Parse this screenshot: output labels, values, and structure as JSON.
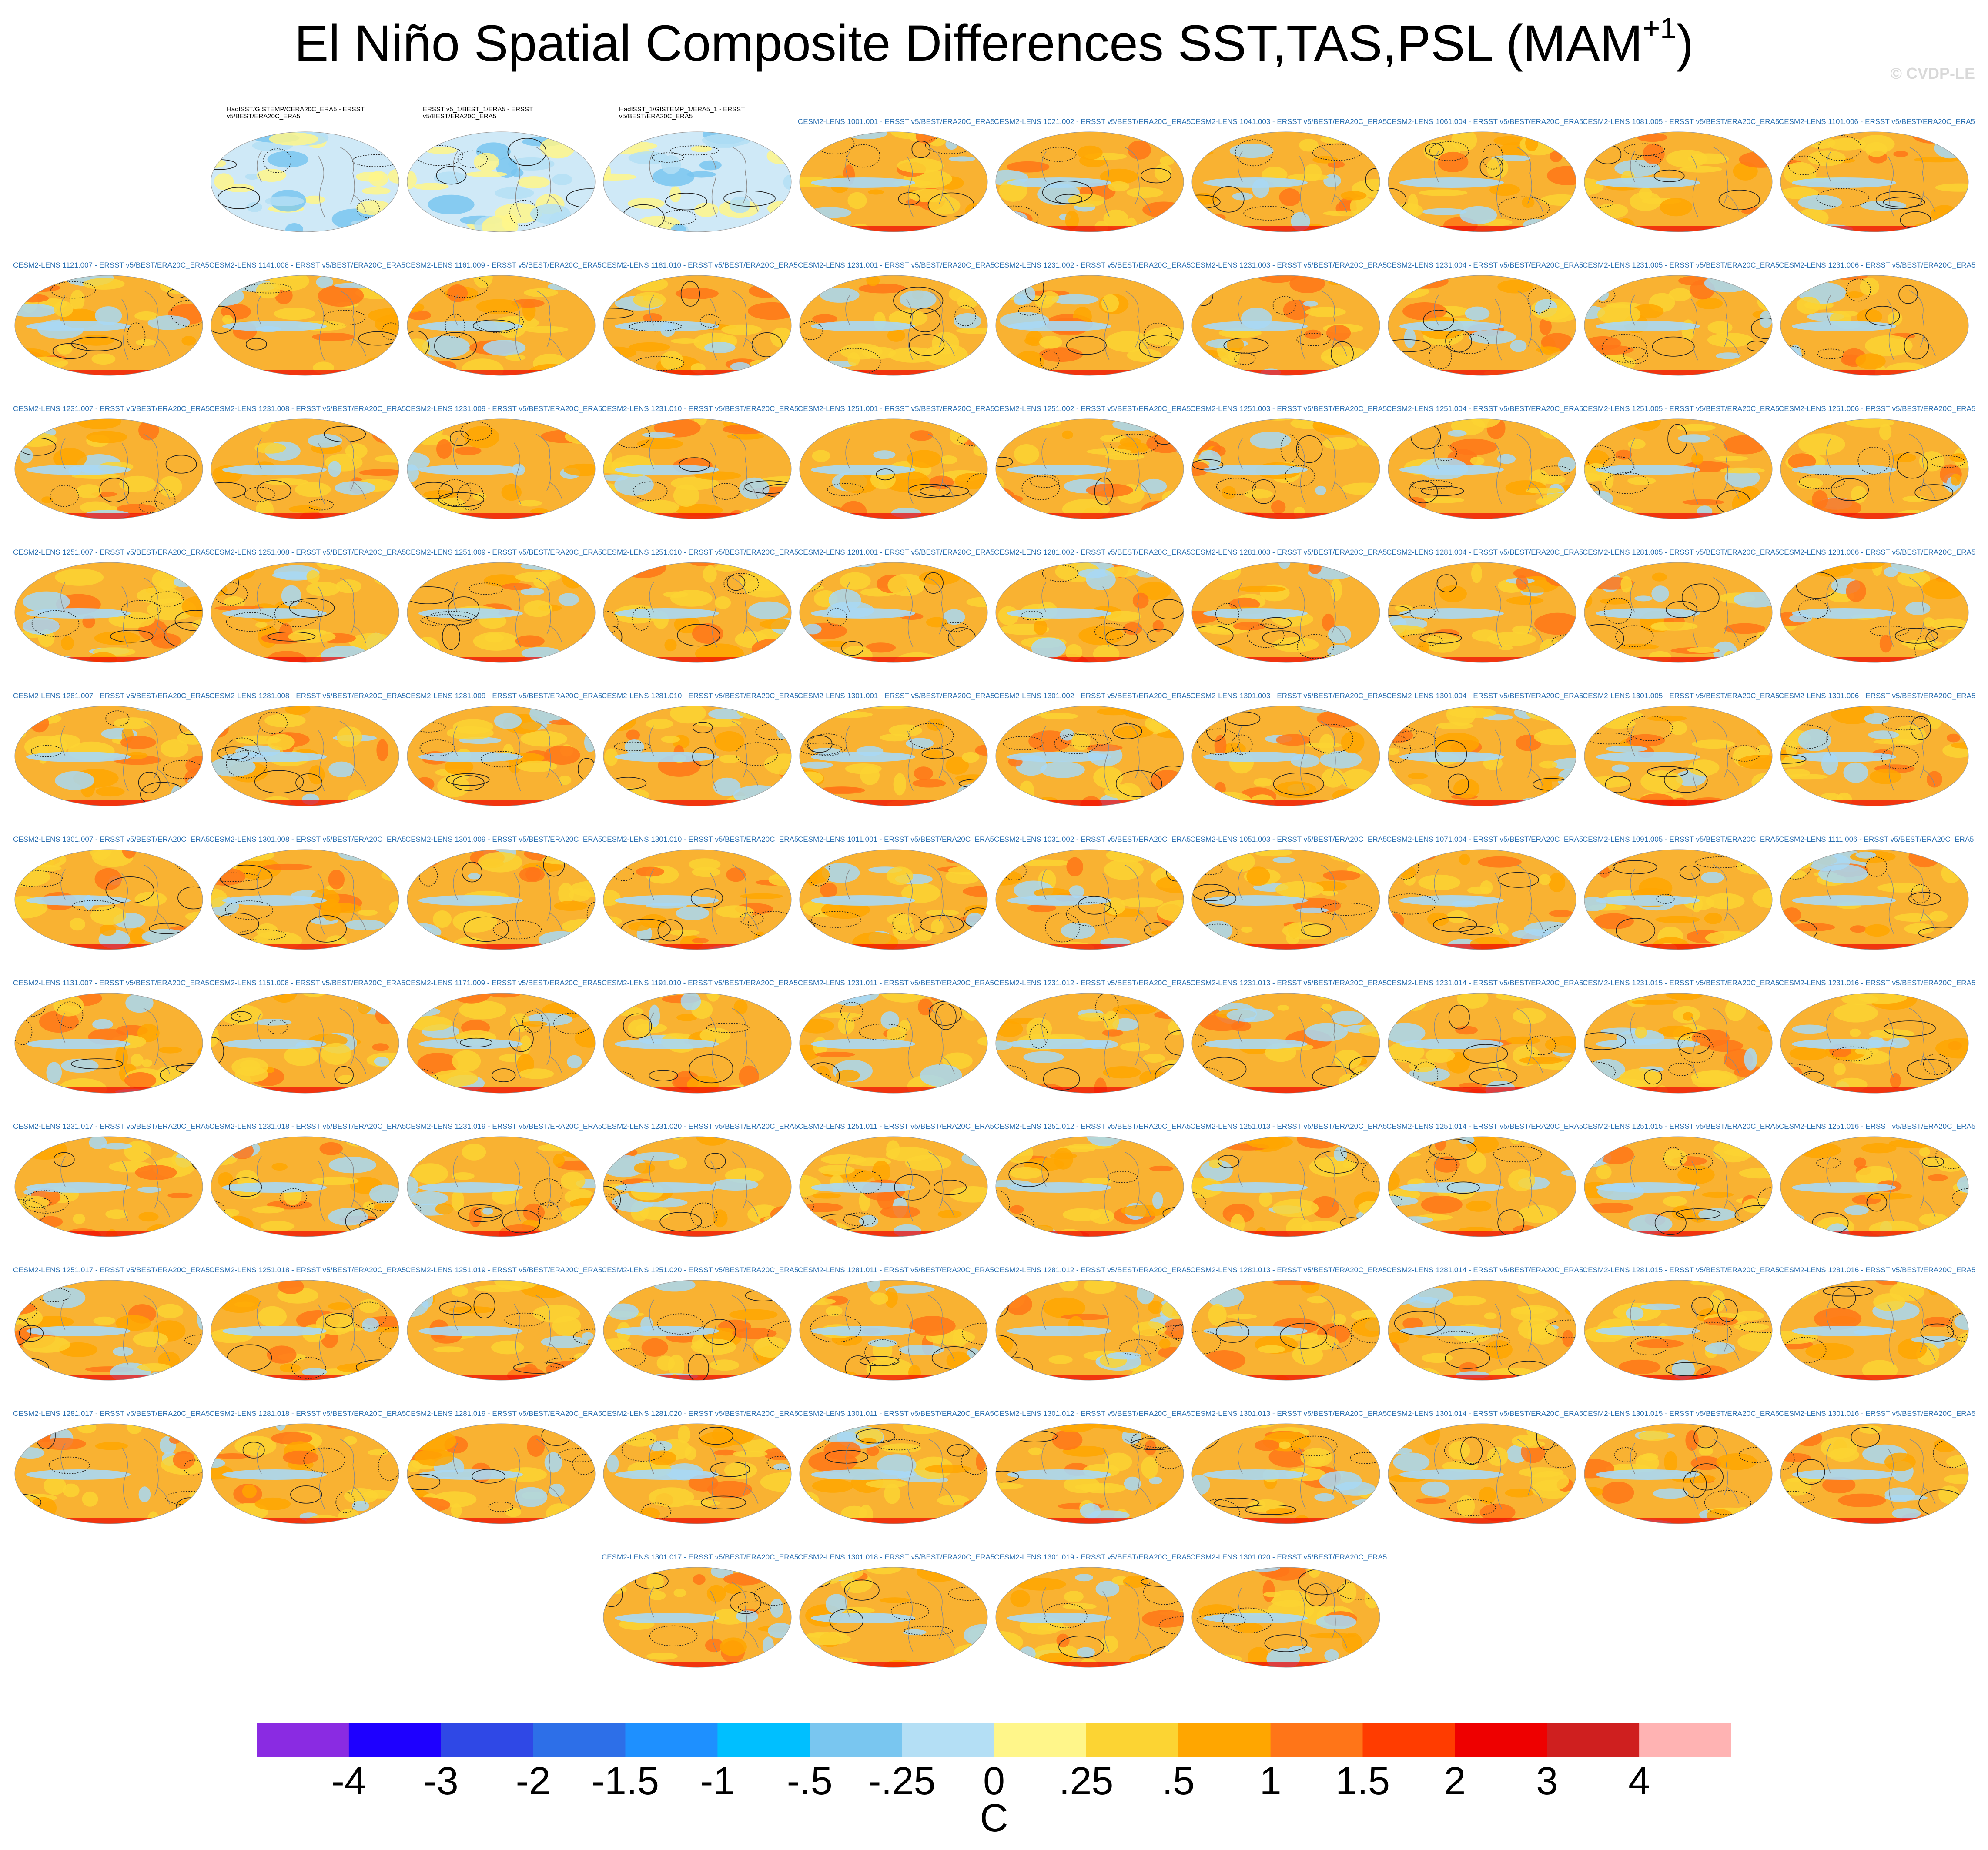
{
  "title": {
    "main": "El Niño Spatial Composite Differences SST,TAS,PSL (MAM",
    "superscript": "+1",
    "close": ")"
  },
  "watermark": "© CVDP-LE",
  "panel_rows": [
    [
      "HadISST/GISTEMP/CERA20C_ERA5 - ERSST v5/BEST/ERA20C_ERA5",
      "ERSST v5_1/BEST_1/ERA5 - ERSST v5/BEST/ERA20C_ERA5",
      "HadISST_1/GISTEMP_1/ERA5_1 - ERSST v5/BEST/ERA20C_ERA5",
      "CESM2-LENS 1001.001 - ERSST v5/BEST/ERA20C_ERA5",
      "CESM2-LENS 1021.002 - ERSST v5/BEST/ERA20C_ERA5",
      "CESM2-LENS 1041.003 - ERSST v5/BEST/ERA20C_ERA5",
      "CESM2-LENS 1061.004 - ERSST v5/BEST/ERA20C_ERA5",
      "CESM2-LENS 1081.005 - ERSST v5/BEST/ERA20C_ERA5",
      "CESM2-LENS 1101.006 - ERSST v5/BEST/ERA20C_ERA5"
    ],
    [
      "CESM2-LENS 1121.007 - ERSST v5/BEST/ERA20C_ERA5",
      "CESM2-LENS 1141.008 - ERSST v5/BEST/ERA20C_ERA5",
      "CESM2-LENS 1161.009 - ERSST v5/BEST/ERA20C_ERA5",
      "CESM2-LENS 1181.010 - ERSST v5/BEST/ERA20C_ERA5",
      "CESM2-LENS 1231.001 - ERSST v5/BEST/ERA20C_ERA5",
      "CESM2-LENS 1231.002 - ERSST v5/BEST/ERA20C_ERA5",
      "CESM2-LENS 1231.003 - ERSST v5/BEST/ERA20C_ERA5",
      "CESM2-LENS 1231.004 - ERSST v5/BEST/ERA20C_ERA5",
      "CESM2-LENS 1231.005 - ERSST v5/BEST/ERA20C_ERA5",
      "CESM2-LENS 1231.006 - ERSST v5/BEST/ERA20C_ERA5"
    ],
    [
      "CESM2-LENS 1231.007 - ERSST v5/BEST/ERA20C_ERA5",
      "CESM2-LENS 1231.008 - ERSST v5/BEST/ERA20C_ERA5",
      "CESM2-LENS 1231.009 - ERSST v5/BEST/ERA20C_ERA5",
      "CESM2-LENS 1231.010 - ERSST v5/BEST/ERA20C_ERA5",
      "CESM2-LENS 1251.001 - ERSST v5/BEST/ERA20C_ERA5",
      "CESM2-LENS 1251.002 - ERSST v5/BEST/ERA20C_ERA5",
      "CESM2-LENS 1251.003 - ERSST v5/BEST/ERA20C_ERA5",
      "CESM2-LENS 1251.004 - ERSST v5/BEST/ERA20C_ERA5",
      "CESM2-LENS 1251.005 - ERSST v5/BEST/ERA20C_ERA5",
      "CESM2-LENS 1251.006 - ERSST v5/BEST/ERA20C_ERA5"
    ],
    [
      "CESM2-LENS 1251.007 - ERSST v5/BEST/ERA20C_ERA5",
      "CESM2-LENS 1251.008 - ERSST v5/BEST/ERA20C_ERA5",
      "CESM2-LENS 1251.009 - ERSST v5/BEST/ERA20C_ERA5",
      "CESM2-LENS 1251.010 - ERSST v5/BEST/ERA20C_ERA5",
      "CESM2-LENS 1281.001 - ERSST v5/BEST/ERA20C_ERA5",
      "CESM2-LENS 1281.002 - ERSST v5/BEST/ERA20C_ERA5",
      "CESM2-LENS 1281.003 - ERSST v5/BEST/ERA20C_ERA5",
      "CESM2-LENS 1281.004 - ERSST v5/BEST/ERA20C_ERA5",
      "CESM2-LENS 1281.005 - ERSST v5/BEST/ERA20C_ERA5",
      "CESM2-LENS 1281.006 - ERSST v5/BEST/ERA20C_ERA5"
    ],
    [
      "CESM2-LENS 1281.007 - ERSST v5/BEST/ERA20C_ERA5",
      "CESM2-LENS 1281.008 - ERSST v5/BEST/ERA20C_ERA5",
      "CESM2-LENS 1281.009 - ERSST v5/BEST/ERA20C_ERA5",
      "CESM2-LENS 1281.010 - ERSST v5/BEST/ERA20C_ERA5",
      "CESM2-LENS 1301.001 - ERSST v5/BEST/ERA20C_ERA5",
      "CESM2-LENS 1301.002 - ERSST v5/BEST/ERA20C_ERA5",
      "CESM2-LENS 1301.003 - ERSST v5/BEST/ERA20C_ERA5",
      "CESM2-LENS 1301.004 - ERSST v5/BEST/ERA20C_ERA5",
      "CESM2-LENS 1301.005 - ERSST v5/BEST/ERA20C_ERA5",
      "CESM2-LENS 1301.006 - ERSST v5/BEST/ERA20C_ERA5"
    ],
    [
      "CESM2-LENS 1301.007 - ERSST v5/BEST/ERA20C_ERA5",
      "CESM2-LENS 1301.008 - ERSST v5/BEST/ERA20C_ERA5",
      "CESM2-LENS 1301.009 - ERSST v5/BEST/ERA20C_ERA5",
      "CESM2-LENS 1301.010 - ERSST v5/BEST/ERA20C_ERA5",
      "CESM2-LENS 1011.001 - ERSST v5/BEST/ERA20C_ERA5",
      "CESM2-LENS 1031.002 - ERSST v5/BEST/ERA20C_ERA5",
      "CESM2-LENS 1051.003 - ERSST v5/BEST/ERA20C_ERA5",
      "CESM2-LENS 1071.004 - ERSST v5/BEST/ERA20C_ERA5",
      "CESM2-LENS 1091.005 - ERSST v5/BEST/ERA20C_ERA5",
      "CESM2-LENS 1111.006 - ERSST v5/BEST/ERA20C_ERA5"
    ],
    [
      "CESM2-LENS 1131.007 - ERSST v5/BEST/ERA20C_ERA5",
      "CESM2-LENS 1151.008 - ERSST v5/BEST/ERA20C_ERA5",
      "CESM2-LENS 1171.009 - ERSST v5/BEST/ERA20C_ERA5",
      "CESM2-LENS 1191.010 - ERSST v5/BEST/ERA20C_ERA5",
      "CESM2-LENS 1231.011 - ERSST v5/BEST/ERA20C_ERA5",
      "CESM2-LENS 1231.012 - ERSST v5/BEST/ERA20C_ERA5",
      "CESM2-LENS 1231.013 - ERSST v5/BEST/ERA20C_ERA5",
      "CESM2-LENS 1231.014 - ERSST v5/BEST/ERA20C_ERA5",
      "CESM2-LENS 1231.015 - ERSST v5/BEST/ERA20C_ERA5",
      "CESM2-LENS 1231.016 - ERSST v5/BEST/ERA20C_ERA5"
    ],
    [
      "CESM2-LENS 1231.017 - ERSST v5/BEST/ERA20C_ERA5",
      "CESM2-LENS 1231.018 - ERSST v5/BEST/ERA20C_ERA5",
      "CESM2-LENS 1231.019 - ERSST v5/BEST/ERA20C_ERA5",
      "CESM2-LENS 1231.020 - ERSST v5/BEST/ERA20C_ERA5",
      "CESM2-LENS 1251.011 - ERSST v5/BEST/ERA20C_ERA5",
      "CESM2-LENS 1251.012 - ERSST v5/BEST/ERA20C_ERA5",
      "CESM2-LENS 1251.013 - ERSST v5/BEST/ERA20C_ERA5",
      "CESM2-LENS 1251.014 - ERSST v5/BEST/ERA20C_ERA5",
      "CESM2-LENS 1251.015 - ERSST v5/BEST/ERA20C_ERA5",
      "CESM2-LENS 1251.016 - ERSST v5/BEST/ERA20C_ERA5"
    ],
    [
      "CESM2-LENS 1251.017 - ERSST v5/BEST/ERA20C_ERA5",
      "CESM2-LENS 1251.018 - ERSST v5/BEST/ERA20C_ERA5",
      "CESM2-LENS 1251.019 - ERSST v5/BEST/ERA20C_ERA5",
      "CESM2-LENS 1251.020 - ERSST v5/BEST/ERA20C_ERA5",
      "CESM2-LENS 1281.011 - ERSST v5/BEST/ERA20C_ERA5",
      "CESM2-LENS 1281.012 - ERSST v5/BEST/ERA20C_ERA5",
      "CESM2-LENS 1281.013 - ERSST v5/BEST/ERA20C_ERA5",
      "CESM2-LENS 1281.014 - ERSST v5/BEST/ERA20C_ERA5",
      "CESM2-LENS 1281.015 - ERSST v5/BEST/ERA20C_ERA5",
      "CESM2-LENS 1281.016 - ERSST v5/BEST/ERA20C_ERA5"
    ],
    [
      "CESM2-LENS 1281.017 - ERSST v5/BEST/ERA20C_ERA5",
      "CESM2-LENS 1281.018 - ERSST v5/BEST/ERA20C_ERA5",
      "CESM2-LENS 1281.019 - ERSST v5/BEST/ERA20C_ERA5",
      "CESM2-LENS 1281.020 - ERSST v5/BEST/ERA20C_ERA5",
      "CESM2-LENS 1301.011 - ERSST v5/BEST/ERA20C_ERA5",
      "CESM2-LENS 1301.012 - ERSST v5/BEST/ERA20C_ERA5",
      "CESM2-LENS 1301.013 - ERSST v5/BEST/ERA20C_ERA5",
      "CESM2-LENS 1301.014 - ERSST v5/BEST/ERA20C_ERA5",
      "CESM2-LENS 1301.015 - ERSST v5/BEST/ERA20C_ERA5",
      "CESM2-LENS 1301.016 - ERSST v5/BEST/ERA20C_ERA5"
    ],
    [
      "CESM2-LENS 1301.017 - ERSST v5/BEST/ERA20C_ERA5",
      "CESM2-LENS 1301.018 - ERSST v5/BEST/ERA20C_ERA5",
      "CESM2-LENS 1301.019 - ERSST v5/BEST/ERA20C_ERA5",
      "CESM2-LENS 1301.020 - ERSST v5/BEST/ERA20C_ERA5"
    ]
  ],
  "chart_data": {
    "type": "heatmap",
    "title": "El Niño Spatial Composite Differences SST,TAS,PSL (MAM+1)",
    "projection": "Robinson global maps",
    "fields": [
      "SST",
      "TAS",
      "PSL"
    ],
    "colorbar": {
      "units": "C",
      "levels": [
        "-4",
        "-3",
        "-2",
        "-1.5",
        "-1",
        "-.5",
        "-.25",
        "0",
        ".25",
        ".5",
        "1",
        "1.5",
        "2",
        "3",
        "4"
      ],
      "colors": [
        "#8a2be2",
        "#1e00ff",
        "#2f48e6",
        "#2d6fe8",
        "#1e90ff",
        "#00bfff",
        "#79c6f0",
        "#b4dff5",
        "#fff68a",
        "#fcd433",
        "#ffa600",
        "#ff7518",
        "#ff3c00",
        "#ee0000",
        "#cf1f1f",
        "#ffb3b3"
      ],
      "orientation": "horizontal",
      "placement": "bottom"
    },
    "panel_count": 103,
    "panel_colors": {
      "warm_fill": "#f9b232",
      "warm_light": "#fcd433",
      "hot": "#ff7518",
      "cool": "#a8d8f5",
      "obs_fill": "#cfe9f7"
    }
  }
}
